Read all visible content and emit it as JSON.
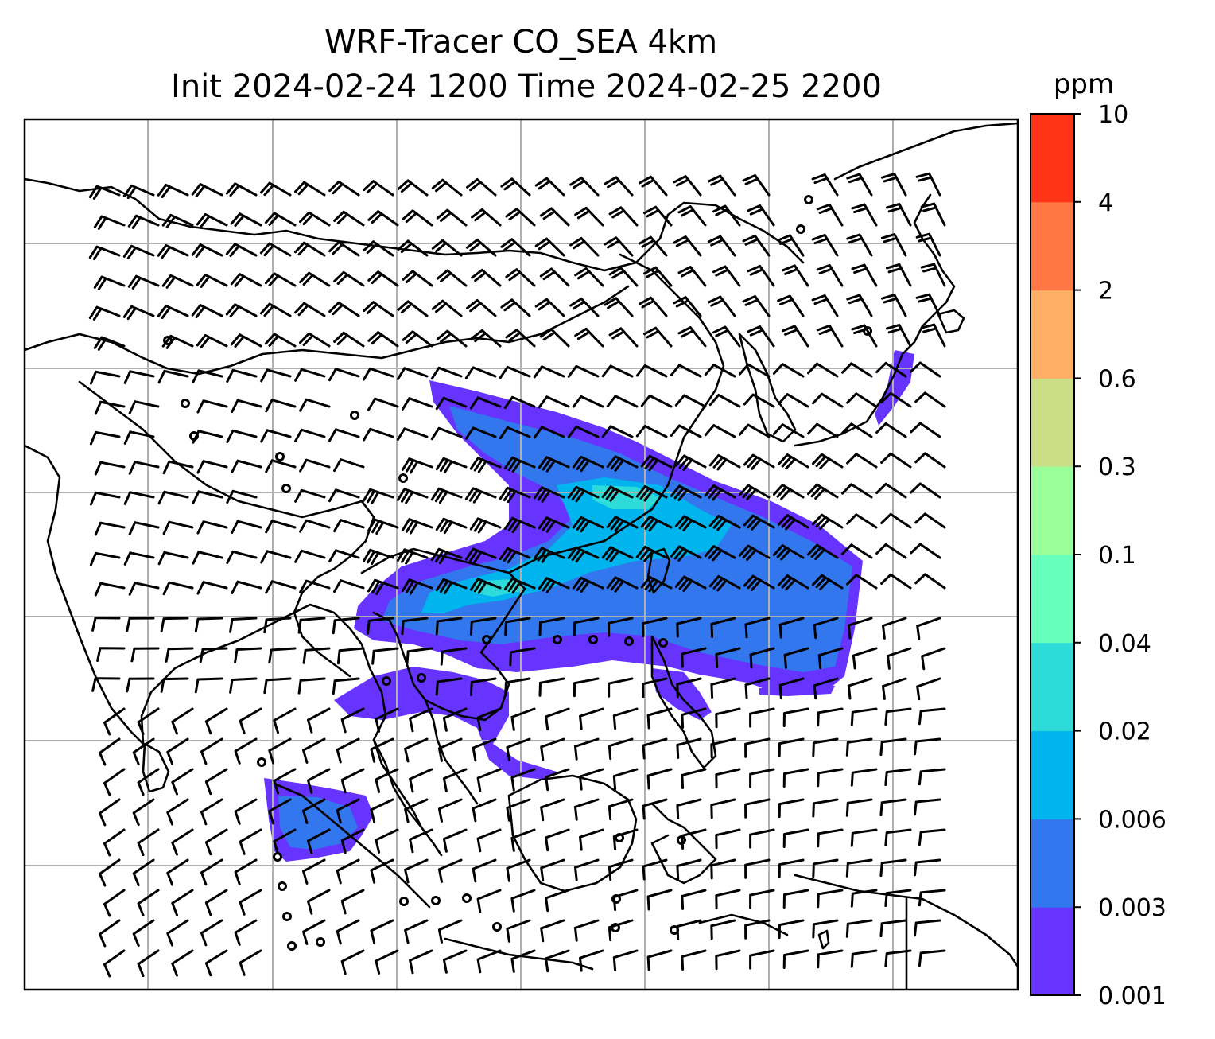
{
  "title": {
    "line1": "WRF-Tracer CO_SEA 4km",
    "line2": "Init 2024-02-24 1200 Time 2024-02-25 2200"
  },
  "colorbar": {
    "unit": "ppm",
    "levels": [
      "0.001",
      "0.003",
      "0.006",
      "0.02",
      "0.04",
      "0.1",
      "0.3",
      "0.6",
      "2",
      "4",
      "10"
    ],
    "colors": [
      "#6633ff",
      "#3377ee",
      "#00b4ee",
      "#2ddcd8",
      "#66ffbb",
      "#99ff99",
      "#ccdd88",
      "#ffb066",
      "#ff7744",
      "#ff3318"
    ]
  },
  "map": {
    "field": "CO_SEA tracer concentration",
    "gridlines": true,
    "wind_barbs": true,
    "coastlines": true
  }
}
